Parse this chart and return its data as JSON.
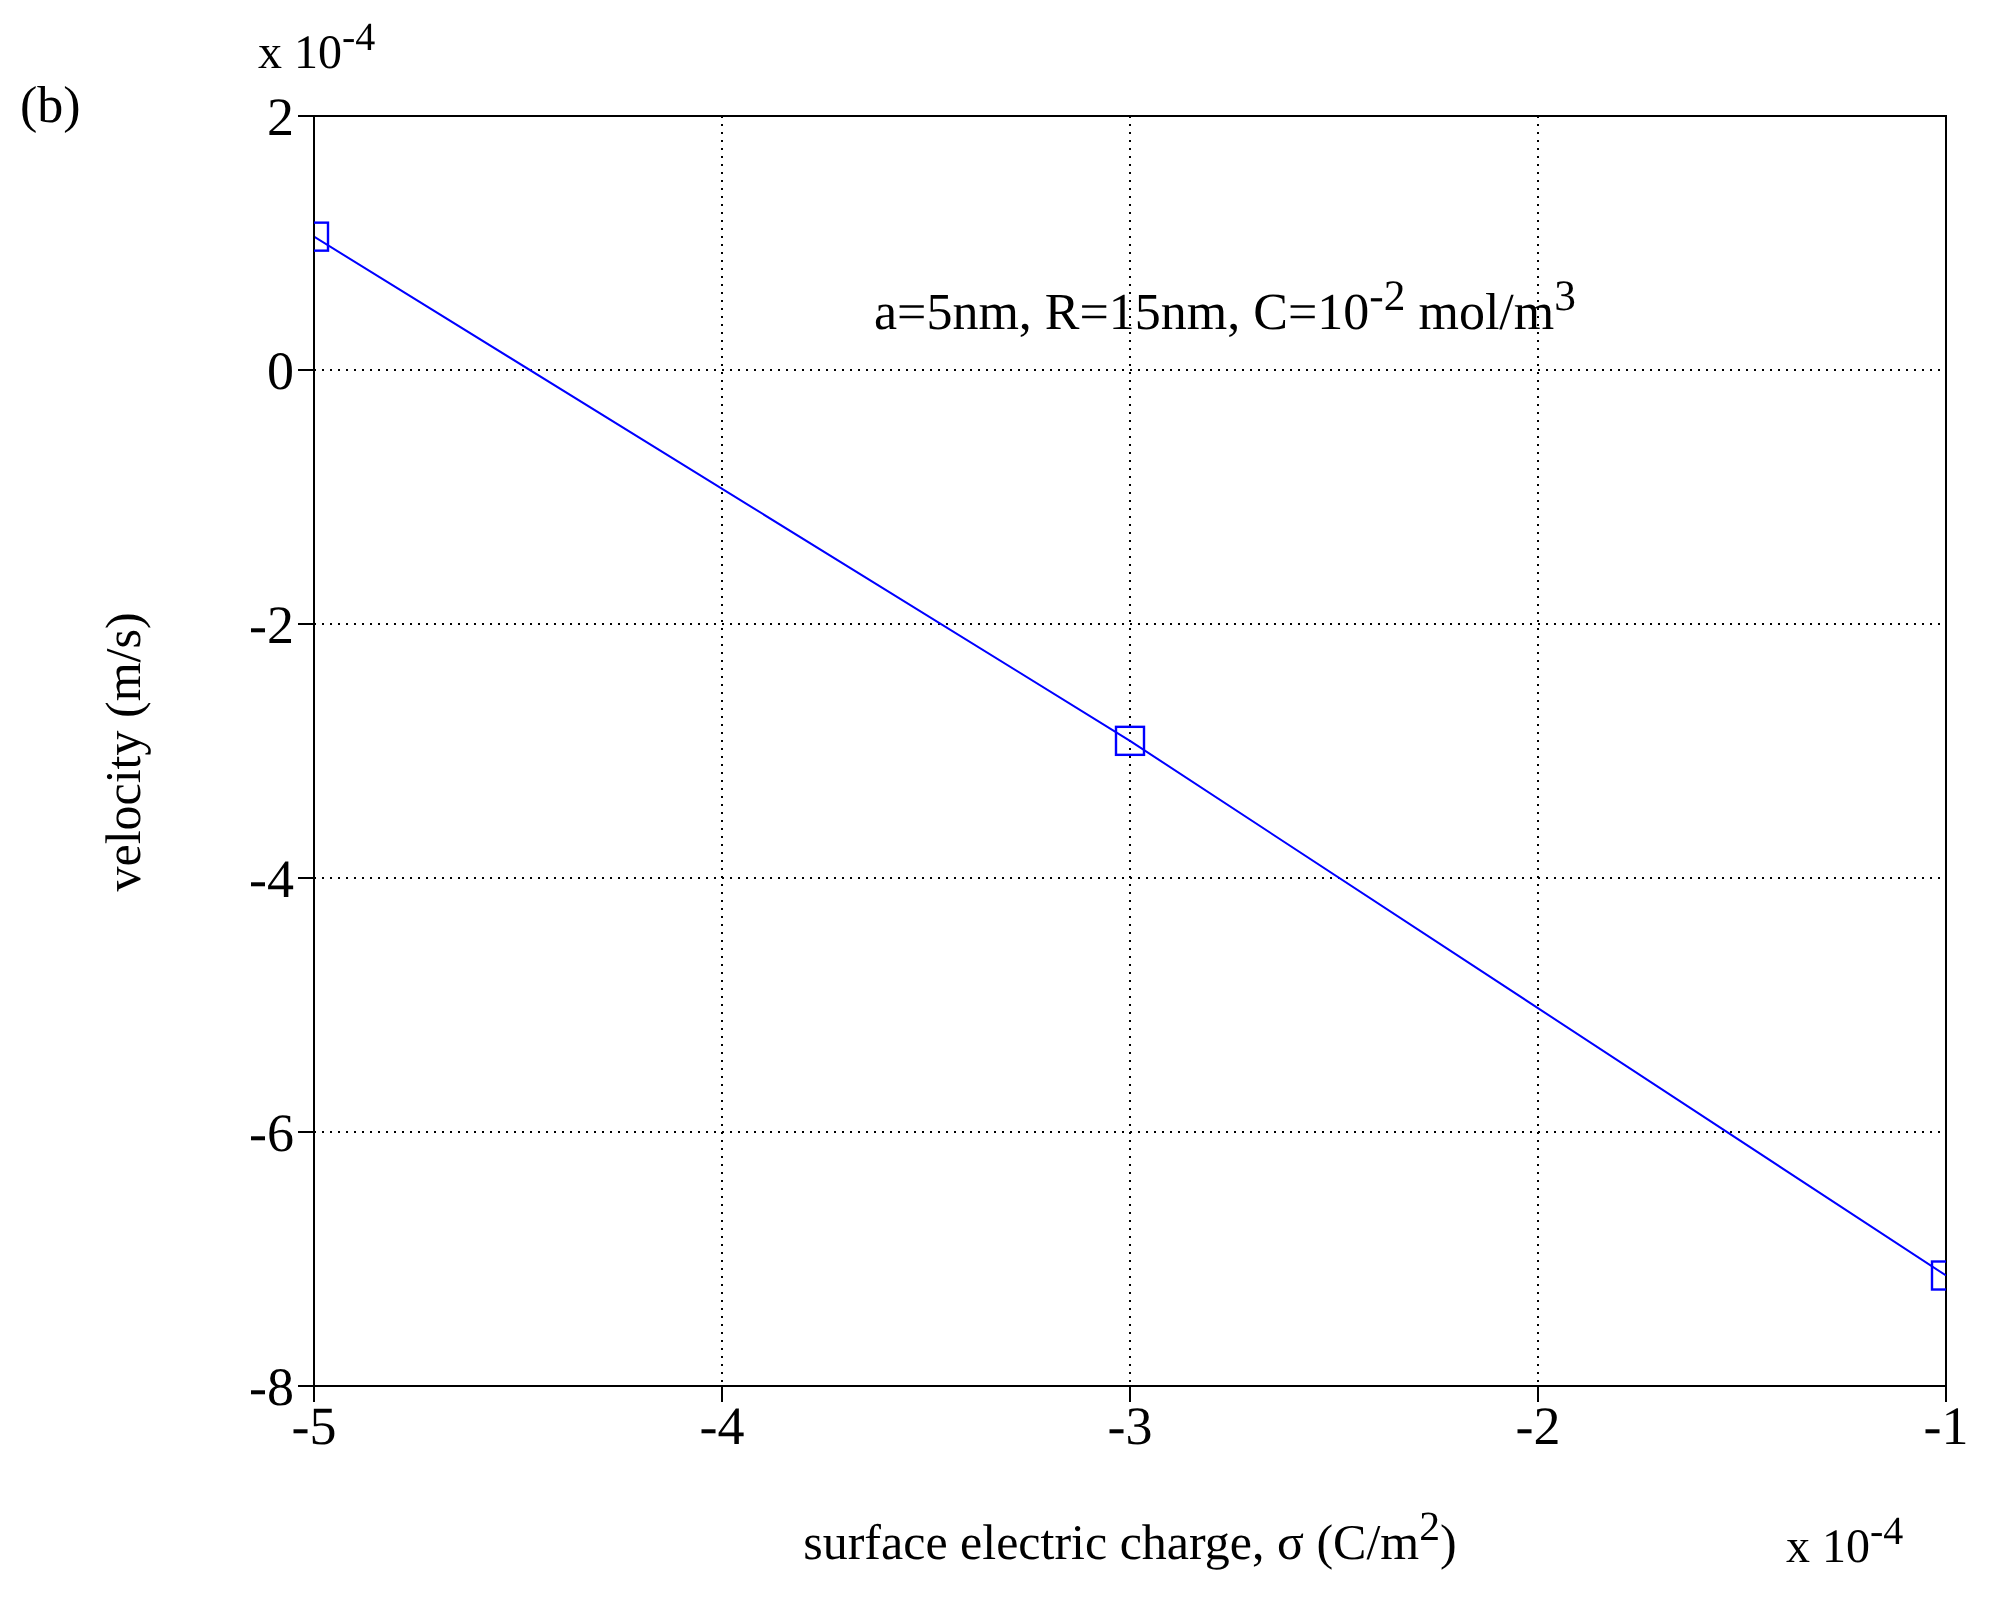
{
  "chart_data": {
    "type": "line",
    "xlabel": "surface electric charge, σ (C/m$^{2}$)",
    "ylabel": "velocity (m/s)",
    "annotations": [
      "(b)",
      "x 10$^{-4}$",
      "x 10$^{-4}$",
      "a=5nm, R=15nm, C=10$^{-2}$ mol/m$^{3}$"
    ],
    "x": [
      -5,
      -3,
      -1
    ],
    "series": [
      {
        "color": "#0000ff",
        "values": [
          1.05,
          -2.92,
          -7.13
        ]
      }
    ],
    "xlim": [
      -5,
      -1
    ],
    "xticks": [
      -5,
      -4,
      -3,
      -2,
      -1
    ],
    "ylim": [
      -8,
      2
    ],
    "yticks": [
      -8,
      -6,
      -4,
      -2,
      0,
      2
    ],
    "grid": true,
    "marker": "square",
    "line_style": "solid"
  }
}
